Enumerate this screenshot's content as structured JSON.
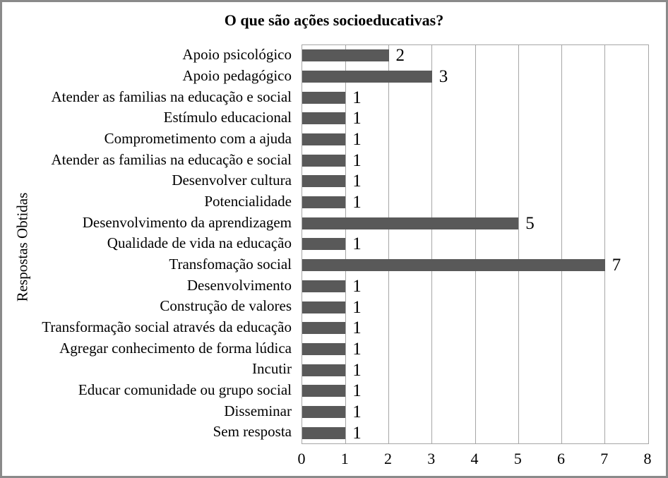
{
  "chart_data": {
    "type": "bar",
    "orientation": "horizontal",
    "title": "O que são ações socioeducativas?",
    "ylabel": "Respostas Obtidas",
    "xlabel": "",
    "categories": [
      "Apoio psicológico",
      "Apoio pedagógico",
      "Atender as familias na educação e social",
      "Estímulo educacional",
      "Comprometimento com a ajuda",
      "Atender as familias na educação e social",
      "Desenvolver cultura",
      "Potencialidade",
      "Desenvolvimento da aprendizagem",
      "Qualidade de vida na educação",
      "Transfomação social",
      "Desenvolvimento",
      "Construção de valores",
      "Transformação social através da educação",
      "Agregar conhecimento de forma lúdica",
      "Incutir",
      "Educar comunidade ou grupo social",
      "Disseminar",
      "Sem resposta"
    ],
    "values": [
      2,
      3,
      1,
      1,
      1,
      1,
      1,
      1,
      5,
      1,
      7,
      1,
      1,
      1,
      1,
      1,
      1,
      1,
      1
    ],
    "data_labels_shown": true,
    "x_ticks": [
      "0",
      "1",
      "2",
      "3",
      "4",
      "5",
      "6",
      "7",
      "8"
    ],
    "xlim": [
      0,
      8
    ],
    "grid": "vertical-gridlines-on",
    "legend": "none",
    "colors": {
      "bar": "#595959",
      "grid": "#a6a6a6",
      "plot_border": "#a6a6a6",
      "frame_border": "#8a8a8a",
      "text": "#000000",
      "background": "#ffffff"
    }
  }
}
